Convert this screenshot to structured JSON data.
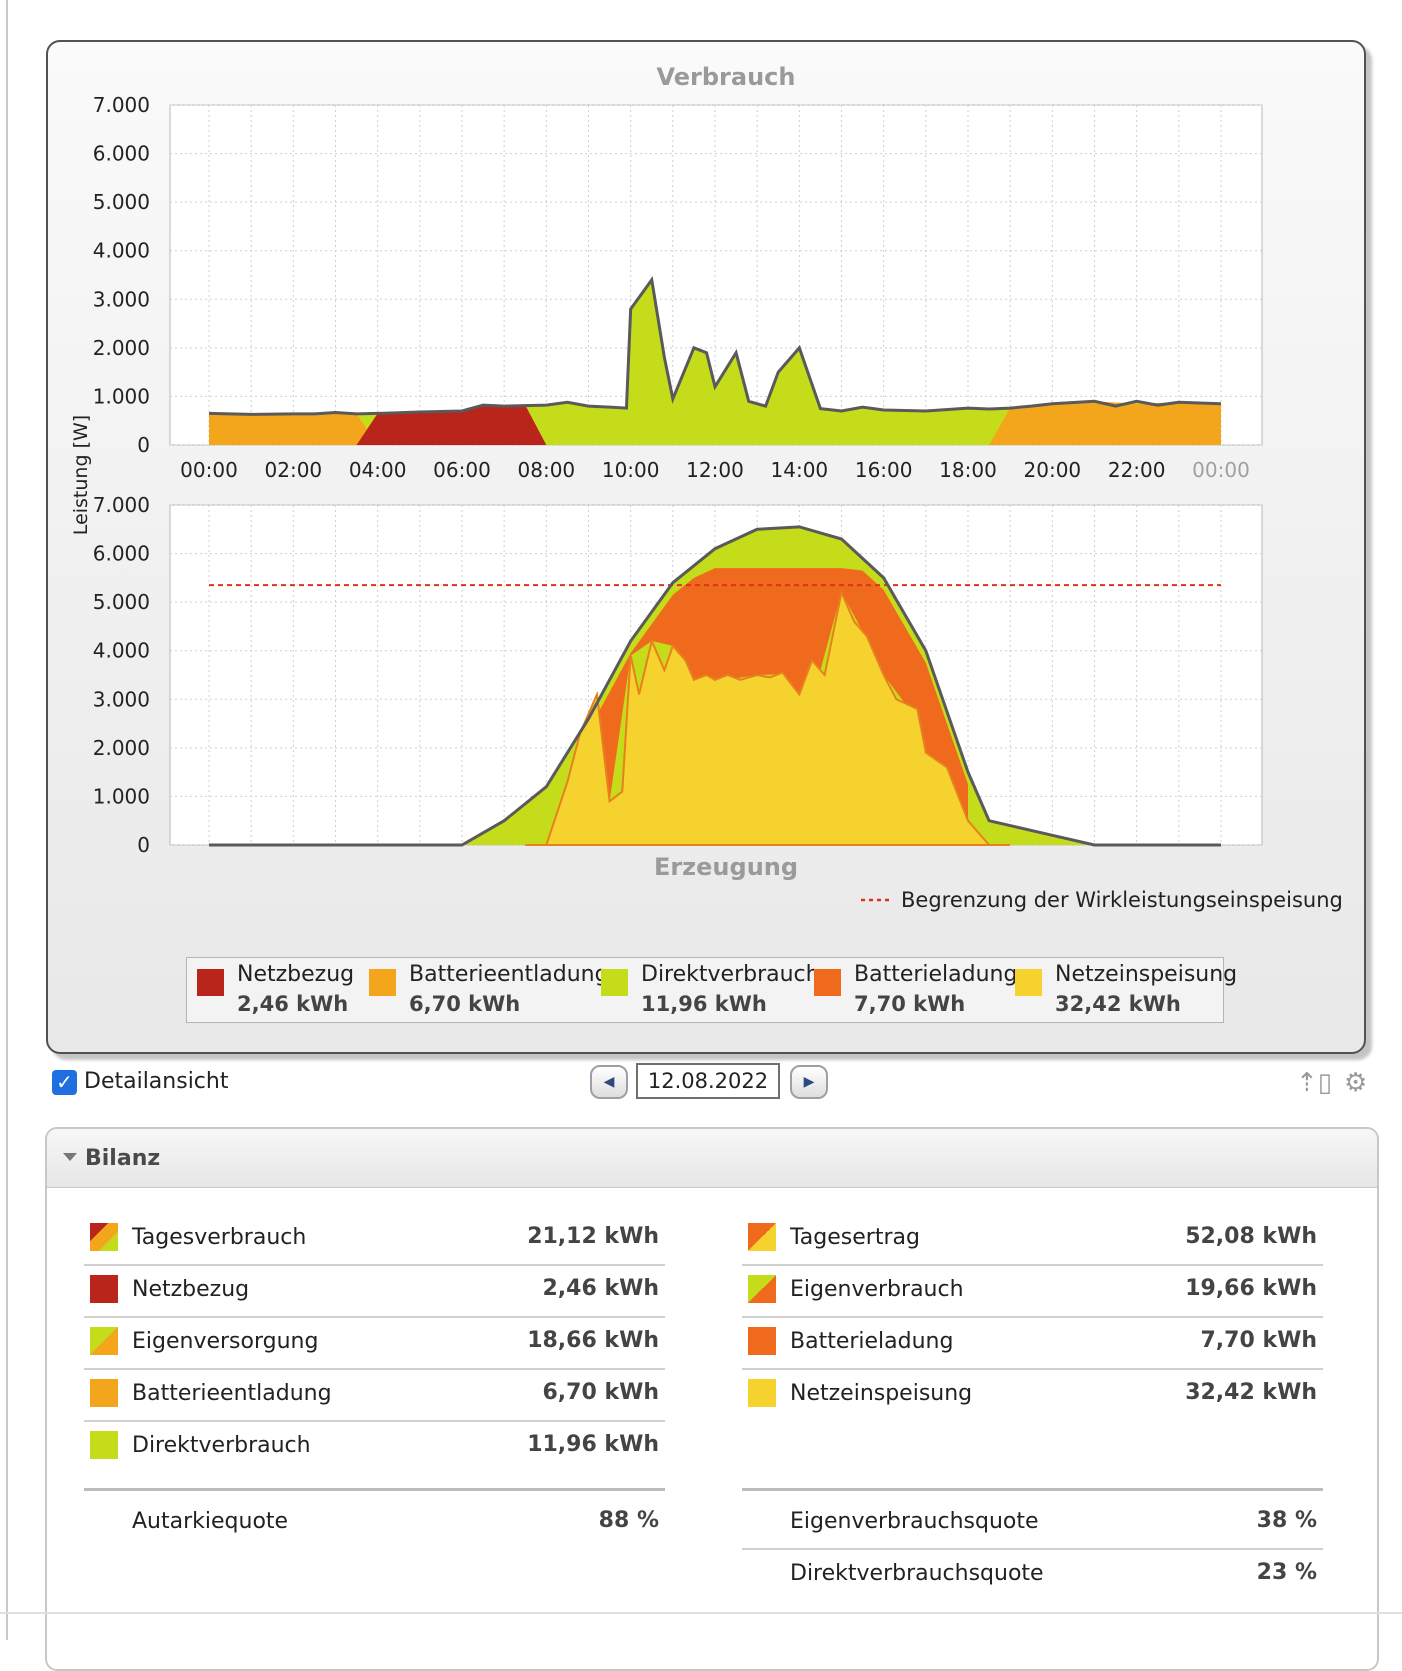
{
  "chart_data": [
    {
      "type": "area",
      "title": "Verbrauch",
      "ylabel": "Leistung [W]",
      "x_ticks": [
        "00:00",
        "02:00",
        "04:00",
        "06:00",
        "08:00",
        "10:00",
        "12:00",
        "14:00",
        "16:00",
        "18:00",
        "20:00",
        "22:00",
        "00:00"
      ],
      "y_ticks": [
        "0",
        "1.000",
        "2.000",
        "3.000",
        "4.000",
        "5.000",
        "6.000",
        "7.000"
      ],
      "ylim": [
        0,
        7000
      ],
      "xlim_hours": [
        0,
        24
      ],
      "grid": true,
      "total": {
        "name": "Verbrauch",
        "x_hours": [
          0,
          1,
          2,
          2.5,
          3,
          3.5,
          4,
          5,
          6,
          6.5,
          7,
          8,
          8.5,
          9,
          9.5,
          9.9,
          10,
          10.5,
          10.8,
          11,
          11.5,
          11.8,
          12,
          12.5,
          12.8,
          13.2,
          13.5,
          14,
          14.5,
          15,
          15.5,
          16,
          17,
          18,
          18.5,
          19,
          19.5,
          20,
          21,
          21.5,
          22,
          22.5,
          23,
          24
        ],
        "values": [
          650,
          630,
          640,
          640,
          670,
          640,
          650,
          680,
          700,
          820,
          800,
          820,
          880,
          800,
          780,
          760,
          2800,
          3400,
          1800,
          950,
          2000,
          1900,
          1200,
          1900,
          900,
          800,
          1500,
          2000,
          750,
          700,
          780,
          720,
          700,
          760,
          740,
          760,
          800,
          850,
          900,
          800,
          900,
          820,
          880,
          850
        ]
      },
      "layers": [
        {
          "name": "Batterieentladung",
          "color": "#f3a61c",
          "x_hours": [
            0,
            2,
            3,
            3.5,
            4,
            18.5,
            19,
            19.5,
            20,
            21,
            22,
            23,
            24
          ],
          "values": [
            650,
            640,
            670,
            640,
            0,
            0,
            760,
            800,
            850,
            900,
            850,
            880,
            850
          ]
        },
        {
          "name": "Netzbezug",
          "color": "#b9251a",
          "x_hours": [
            3.5,
            4,
            5,
            6,
            6.5,
            7,
            7.5,
            8
          ],
          "values": [
            0,
            650,
            680,
            700,
            820,
            800,
            820,
            0
          ]
        },
        {
          "name": "Direktverbrauch",
          "color": "#c5dc1b"
        }
      ]
    },
    {
      "type": "area",
      "title": "Erzeugung",
      "y_ticks": [
        "0",
        "1.000",
        "2.000",
        "3.000",
        "4.000",
        "5.000",
        "6.000",
        "7.000"
      ],
      "ylim": [
        0,
        7000
      ],
      "limit_line": {
        "name": "Begrenzung der Wirkleistungseinspeisung",
        "value": 5350,
        "color": "#e03020"
      },
      "total": {
        "x_hours": [
          0,
          6,
          7,
          8,
          9,
          10,
          11,
          12,
          13,
          14,
          15,
          16,
          17,
          18,
          18.5,
          19,
          20,
          21,
          22,
          23,
          24
        ],
        "values": [
          0,
          0,
          500,
          1200,
          2600,
          4200,
          5400,
          6100,
          6500,
          6550,
          6300,
          5500,
          4000,
          1500,
          500,
          400,
          200,
          0,
          0,
          0,
          0
        ]
      },
      "layers": [
        {
          "name": "Netzeinspeisung",
          "color": "#f5d22d",
          "x_hours": [
            7.5,
            8,
            8.5,
            8.8,
            9.2,
            9.5,
            9.8,
            10,
            10.2,
            10.5,
            10.8,
            11,
            11.3,
            11.5,
            11.8,
            12,
            12.3,
            12.6,
            13,
            13.3,
            13.6,
            14,
            14.3,
            14.6,
            15,
            15.3,
            15.6,
            16,
            16.3,
            16.8,
            17,
            17.5,
            18,
            18.5,
            19
          ],
          "values": [
            0,
            0,
            1300,
            2300,
            3100,
            900,
            1100,
            3900,
            3100,
            4200,
            3600,
            4100,
            3800,
            3400,
            3500,
            3400,
            3500,
            3400,
            3500,
            3450,
            3550,
            3100,
            3800,
            3500,
            5200,
            4600,
            4300,
            3500,
            3000,
            2800,
            1900,
            1600,
            500,
            0,
            0
          ]
        },
        {
          "name": "Batterieladung",
          "color": "#f06a1e"
        },
        {
          "name": "Direktverbrauch",
          "color": "#c5dc1b"
        }
      ]
    }
  ],
  "legend": [
    {
      "name": "Netzbezug",
      "value": "2,46 kWh",
      "color": "#b9251a"
    },
    {
      "name": "Batterieentladung",
      "value": "6,70 kWh",
      "color": "#f3a61c"
    },
    {
      "name": "Direktverbrauch",
      "value": "11,96 kWh",
      "color": "#c5dc1b"
    },
    {
      "name": "Batterieladung",
      "value": "7,70 kWh",
      "color": "#f06a1e"
    },
    {
      "name": "Netzeinspeisung",
      "value": "32,42 kWh",
      "color": "#f5d22d"
    }
  ],
  "controls": {
    "detail_label": "Detailansicht",
    "detail_checked": true,
    "date": "12.08.2022",
    "prev_icon": "arrow-left-icon",
    "next_icon": "arrow-right-icon"
  },
  "bilanz": {
    "title": "Bilanz",
    "left": [
      {
        "label": "Tagesverbrauch",
        "value": "21,12 kWh",
        "swatch": "mixed-red-orange-yellow"
      },
      {
        "label": "Netzbezug",
        "value": "2,46 kWh",
        "swatch": "#b9251a"
      },
      {
        "label": "Eigenversorgung",
        "value": "18,66 kWh",
        "swatch": "mixed-green-orange"
      },
      {
        "label": "Batterieentladung",
        "value": "6,70 kWh",
        "swatch": "#f3a61c"
      },
      {
        "label": "Direktverbrauch",
        "value": "11,96 kWh",
        "swatch": "#c5dc1b"
      }
    ],
    "right": [
      {
        "label": "Tagesertrag",
        "value": "52,08 kWh",
        "swatch": "mixed-orange-yellow"
      },
      {
        "label": "Eigenverbrauch",
        "value": "19,66 kWh",
        "swatch": "mixed-green-orange"
      },
      {
        "label": "Batterieladung",
        "value": "7,70 kWh",
        "swatch": "#f06a1e"
      },
      {
        "label": "Netzeinspeisung",
        "value": "32,42 kWh",
        "swatch": "#f5d22d"
      }
    ],
    "quotes_left": [
      {
        "label": "Autarkiequote",
        "value": "88 %"
      }
    ],
    "quotes_right": [
      {
        "label": "Eigenverbrauchsquote",
        "value": "38 %"
      },
      {
        "label": "Direktverbrauchsquote",
        "value": "23 %"
      }
    ]
  }
}
